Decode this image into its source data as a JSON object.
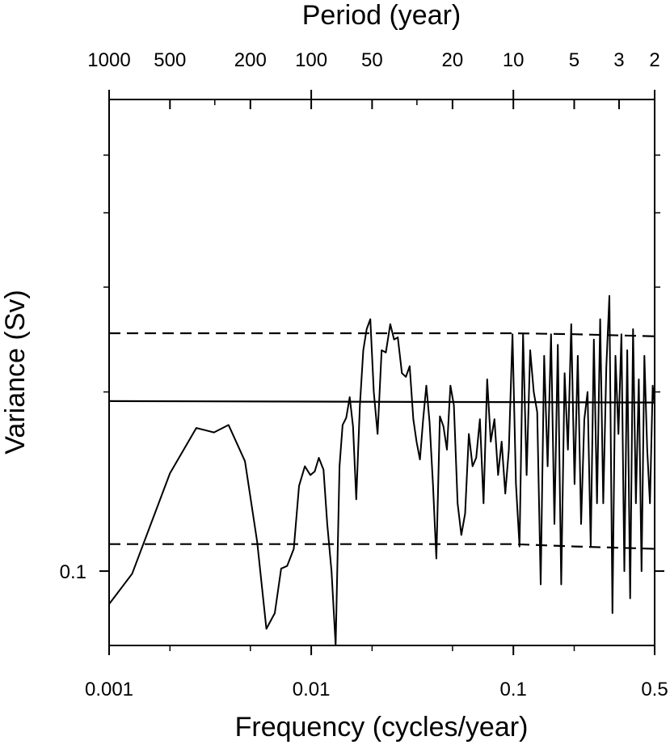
{
  "chart_data": {
    "type": "line",
    "title": "",
    "top_axis": {
      "label": "Period (year)",
      "tick_labels": [
        "1000",
        "500",
        "200",
        "100",
        "50",
        "20",
        "10",
        "5",
        "3",
        "2"
      ],
      "tick_periods": [
        1000,
        500,
        200,
        100,
        50,
        20,
        10,
        5,
        3,
        2
      ]
    },
    "xlabel": "Frequency (cycles/year)",
    "ylabel": "Variance (Sv)",
    "x_scale": "log",
    "y_scale": "log",
    "xlim": [
      0.001,
      0.5
    ],
    "ylim": [
      0.075,
      0.62
    ],
    "x_ticks": [
      0.001,
      0.01,
      0.1,
      0.5
    ],
    "x_tick_labels": [
      "0.001",
      "0.01",
      "0.1",
      "0.5"
    ],
    "y_ticks": [
      0.1
    ],
    "y_tick_labels": [
      "0.1"
    ],
    "legend": "none",
    "grid": false,
    "series": [
      {
        "style": "solid",
        "x": [
          0.001,
          0.0013,
          0.002,
          0.0027,
          0.0033,
          0.0039,
          0.0047,
          0.0054,
          0.006,
          0.0066,
          0.0071,
          0.0076,
          0.0082,
          0.0087,
          0.0093,
          0.0099,
          0.0104,
          0.0109,
          0.0115,
          0.012,
          0.0126,
          0.0132,
          0.0138,
          0.0143,
          0.0149,
          0.0155,
          0.0161,
          0.0167,
          0.0174,
          0.0181,
          0.0188,
          0.0196,
          0.0204,
          0.0213,
          0.0223,
          0.0234,
          0.0246,
          0.0257,
          0.0268,
          0.0281,
          0.0294,
          0.0307,
          0.032,
          0.0332,
          0.0345,
          0.0358,
          0.0371,
          0.0385,
          0.04,
          0.0416,
          0.0433,
          0.0451,
          0.0469,
          0.0488,
          0.0508,
          0.053,
          0.0553,
          0.0577,
          0.0602,
          0.0628,
          0.0655,
          0.0683,
          0.0712,
          0.0742,
          0.0773,
          0.0806,
          0.084,
          0.0875,
          0.0912,
          0.095,
          0.099,
          0.103,
          0.1073,
          0.1117,
          0.1163,
          0.1211,
          0.1261,
          0.1312,
          0.1365,
          0.142,
          0.1477,
          0.1536,
          0.1597,
          0.166,
          0.1725,
          0.1793,
          0.1862,
          0.1934,
          0.2008,
          0.2084,
          0.2163,
          0.2244,
          0.2328,
          0.2414,
          0.2503,
          0.2594,
          0.2688,
          0.2785,
          0.2884,
          0.2986,
          0.3091,
          0.3199,
          0.331,
          0.3424,
          0.3541,
          0.3661,
          0.3784,
          0.391,
          0.404,
          0.4173,
          0.4309,
          0.4449,
          0.4592,
          0.4739,
          0.489,
          0.5
        ],
        "y": [
          0.088,
          0.099,
          0.146,
          0.174,
          0.171,
          0.176,
          0.153,
          0.112,
          0.08,
          0.085,
          0.101,
          0.102,
          0.109,
          0.139,
          0.15,
          0.145,
          0.147,
          0.155,
          0.148,
          0.12,
          0.1,
          0.075,
          0.15,
          0.176,
          0.181,
          0.196,
          0.175,
          0.132,
          0.19,
          0.235,
          0.255,
          0.265,
          0.2,
          0.17,
          0.235,
          0.233,
          0.26,
          0.245,
          0.247,
          0.215,
          0.212,
          0.221,
          0.18,
          0.165,
          0.154,
          0.18,
          0.205,
          0.178,
          0.14,
          0.105,
          0.182,
          0.175,
          0.16,
          0.205,
          0.19,
          0.13,
          0.115,
          0.125,
          0.17,
          0.15,
          0.155,
          0.18,
          0.13,
          0.21,
          0.165,
          0.18,
          0.145,
          0.165,
          0.135,
          0.16,
          0.25,
          0.14,
          0.11,
          0.25,
          0.145,
          0.235,
          0.2,
          0.185,
          0.095,
          0.23,
          0.15,
          0.25,
          0.12,
          0.24,
          0.095,
          0.215,
          0.16,
          0.26,
          0.14,
          0.23,
          0.12,
          0.18,
          0.2,
          0.11,
          0.245,
          0.13,
          0.265,
          0.13,
          0.22,
          0.29,
          0.085,
          0.23,
          0.17,
          0.25,
          0.1,
          0.235,
          0.09,
          0.255,
          0.13,
          0.21,
          0.1,
          0.23,
          0.16,
          0.13,
          0.205,
          0.19
        ]
      },
      {
        "style": "solid",
        "x": [
          0.001,
          0.5
        ],
        "y": [
          0.193,
          0.192
        ]
      },
      {
        "style": "dashed",
        "x": [
          0.001,
          0.1,
          0.2,
          0.5
        ],
        "y": [
          0.251,
          0.251,
          0.25,
          0.248
        ]
      },
      {
        "style": "dashed",
        "x": [
          0.001,
          0.1,
          0.2,
          0.5
        ],
        "y": [
          0.111,
          0.111,
          0.11,
          0.109
        ]
      }
    ]
  }
}
